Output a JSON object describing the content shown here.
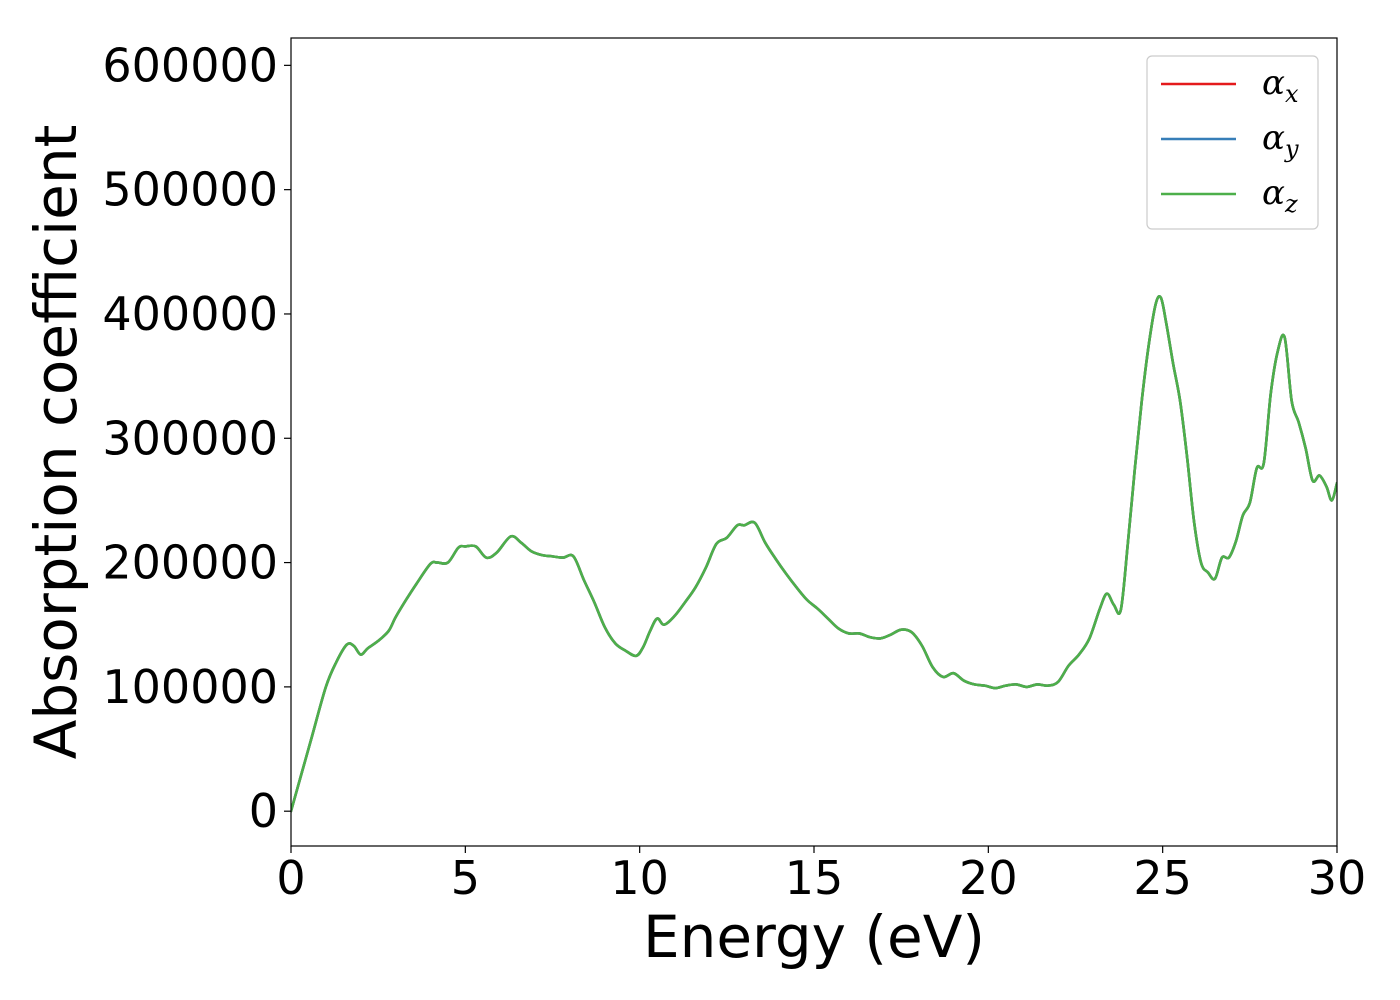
{
  "chart_data": {
    "type": "line",
    "title": "",
    "xlabel": "Energy (eV)",
    "ylabel": "Absorption coefficient",
    "xlim": [
      0,
      30
    ],
    "ylim": [
      -28000,
      622000
    ],
    "xticks": [
      0,
      5,
      10,
      15,
      20,
      25,
      30
    ],
    "xtick_labels": [
      "0",
      "5",
      "10",
      "15",
      "20",
      "25",
      "30"
    ],
    "yticks": [
      0,
      100000,
      200000,
      300000,
      400000,
      500000,
      600000
    ],
    "ytick_labels": [
      "0",
      "100000",
      "200000",
      "300000",
      "400000",
      "500000",
      "600000"
    ],
    "grid": false,
    "legend_position": "top-right",
    "x": [
      0,
      0.3,
      0.6,
      1.0,
      1.3,
      1.6,
      1.8,
      2.0,
      2.2,
      2.5,
      2.8,
      3.0,
      3.3,
      3.6,
      4.0,
      4.2,
      4.5,
      4.8,
      5.0,
      5.3,
      5.6,
      5.9,
      6.3,
      6.6,
      6.9,
      7.2,
      7.5,
      7.8,
      8.1,
      8.4,
      8.7,
      9.0,
      9.3,
      9.6,
      9.9,
      10.1,
      10.3,
      10.5,
      10.7,
      11.0,
      11.3,
      11.6,
      11.9,
      12.2,
      12.5,
      12.8,
      13.0,
      13.3,
      13.6,
      13.9,
      14.2,
      14.5,
      14.8,
      15.1,
      15.4,
      15.7,
      16.0,
      16.3,
      16.6,
      16.9,
      17.2,
      17.5,
      17.8,
      18.1,
      18.4,
      18.7,
      19.0,
      19.3,
      19.6,
      19.9,
      20.2,
      20.5,
      20.8,
      21.1,
      21.4,
      21.7,
      22.0,
      22.3,
      22.6,
      22.9,
      23.2,
      23.4,
      23.6,
      23.8,
      24.0,
      24.2,
      24.4,
      24.6,
      24.8,
      24.95,
      25.1,
      25.3,
      25.5,
      25.7,
      25.9,
      26.1,
      26.3,
      26.5,
      26.7,
      26.9,
      27.1,
      27.3,
      27.5,
      27.7,
      27.9,
      28.1,
      28.3,
      28.5,
      28.7,
      28.9,
      29.1,
      29.3,
      29.5,
      29.7,
      29.85,
      30.0
    ],
    "series": [
      {
        "name": "α_x",
        "color": "#e41a1c",
        "values": [
          0,
          30000,
          60000,
          100000,
          120000,
          134000,
          133000,
          126000,
          131000,
          137000,
          145000,
          156000,
          170000,
          183000,
          199000,
          200000,
          200000,
          212000,
          213000,
          213000,
          204000,
          208000,
          221000,
          216000,
          209000,
          206000,
          205000,
          204000,
          205000,
          186000,
          168000,
          148000,
          135000,
          129000,
          125000,
          132000,
          145000,
          155000,
          150000,
          157000,
          168000,
          180000,
          196000,
          215000,
          220000,
          230000,
          230000,
          232000,
          216000,
          203000,
          191000,
          180000,
          170000,
          163000,
          155000,
          147000,
          143000,
          143000,
          140000,
          139000,
          142000,
          146000,
          144000,
          133000,
          116000,
          108000,
          111000,
          105000,
          102000,
          101000,
          99000,
          101000,
          102000,
          100000,
          102000,
          101000,
          104000,
          117000,
          126000,
          139000,
          163000,
          175000,
          166000,
          162000,
          215000,
          275000,
          330000,
          375000,
          408000,
          413000,
          393000,
          360000,
          330000,
          285000,
          233000,
          200000,
          192000,
          187000,
          204000,
          204000,
          217000,
          238000,
          248000,
          276000,
          280000,
          336000,
          370000,
          381000,
          330000,
          313000,
          292000,
          266000,
          270000,
          261000,
          250000,
          264000
        ]
      },
      {
        "name": "α_y",
        "color": "#377eb8",
        "values": [
          0,
          30000,
          60000,
          100000,
          120000,
          134000,
          133000,
          126000,
          131000,
          137000,
          145000,
          156000,
          170000,
          183000,
          199000,
          200000,
          200000,
          212000,
          213000,
          213000,
          204000,
          208000,
          221000,
          216000,
          209000,
          206000,
          205000,
          204000,
          205000,
          186000,
          168000,
          148000,
          135000,
          129000,
          125000,
          132000,
          145000,
          155000,
          150000,
          157000,
          168000,
          180000,
          196000,
          215000,
          220000,
          230000,
          230000,
          232000,
          216000,
          203000,
          191000,
          180000,
          170000,
          163000,
          155000,
          147000,
          143000,
          143000,
          140000,
          139000,
          142000,
          146000,
          144000,
          133000,
          116000,
          108000,
          111000,
          105000,
          102000,
          101000,
          99000,
          101000,
          102000,
          100000,
          102000,
          101000,
          104000,
          117000,
          126000,
          139000,
          163000,
          175000,
          166000,
          162000,
          215000,
          275000,
          330000,
          375000,
          408000,
          413000,
          393000,
          360000,
          330000,
          285000,
          233000,
          200000,
          192000,
          187000,
          204000,
          204000,
          217000,
          238000,
          248000,
          276000,
          280000,
          336000,
          370000,
          381000,
          330000,
          313000,
          292000,
          266000,
          270000,
          261000,
          250000,
          264000
        ]
      },
      {
        "name": "α_z",
        "color": "#4daf4a",
        "values": [
          0,
          30000,
          60000,
          100000,
          120000,
          134000,
          133000,
          126000,
          131000,
          137000,
          145000,
          156000,
          170000,
          183000,
          199000,
          200000,
          200000,
          212000,
          213000,
          213000,
          204000,
          208000,
          221000,
          216000,
          209000,
          206000,
          205000,
          204000,
          205000,
          186000,
          168000,
          148000,
          135000,
          129000,
          125000,
          132000,
          145000,
          155000,
          150000,
          157000,
          168000,
          180000,
          196000,
          215000,
          220000,
          230000,
          230000,
          232000,
          216000,
          203000,
          191000,
          180000,
          170000,
          163000,
          155000,
          147000,
          143000,
          143000,
          140000,
          139000,
          142000,
          146000,
          144000,
          133000,
          116000,
          108000,
          111000,
          105000,
          102000,
          101000,
          99000,
          101000,
          102000,
          100000,
          102000,
          101000,
          104000,
          117000,
          126000,
          139000,
          163000,
          175000,
          166000,
          162000,
          215000,
          275000,
          330000,
          375000,
          408000,
          413000,
          393000,
          360000,
          330000,
          285000,
          233000,
          200000,
          192000,
          187000,
          204000,
          204000,
          217000,
          238000,
          248000,
          276000,
          280000,
          336000,
          370000,
          381000,
          330000,
          313000,
          292000,
          266000,
          270000,
          261000,
          250000,
          264000
        ]
      }
    ],
    "legend": [
      {
        "base": "α",
        "sub": "x",
        "color": "#e41a1c"
      },
      {
        "base": "α",
        "sub": "y",
        "color": "#377eb8"
      },
      {
        "base": "α",
        "sub": "z",
        "color": "#4daf4a"
      }
    ]
  }
}
